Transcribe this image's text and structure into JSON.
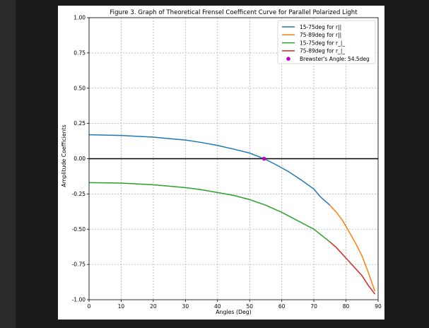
{
  "chart_data": {
    "type": "line",
    "title": "Figure 3. Graph of Theoretical Frensel Coefficent Curve for Parallel Polarized Light",
    "xlabel": "Angles (Deg)",
    "ylabel": "Amplitude Coefficients",
    "xlim": [
      0,
      90
    ],
    "ylim": [
      -1.0,
      1.0
    ],
    "xticks": [
      0,
      10,
      20,
      30,
      40,
      50,
      60,
      70,
      80,
      90
    ],
    "yticks": [
      "-1.00",
      "-0.75",
      "-0.50",
      "-0.25",
      "0.00",
      "0.25",
      "0.50",
      "0.75",
      "1.00"
    ],
    "grid": true,
    "legend_position": "top-right",
    "series": [
      {
        "name": "15-75deg for r||",
        "color": "#1f77b4",
        "x": [
          0,
          10,
          20,
          30,
          35,
          40,
          45,
          50,
          54.5,
          58,
          62,
          66,
          70,
          72,
          75
        ],
        "y": [
          0.17,
          0.165,
          0.153,
          0.132,
          0.115,
          0.094,
          0.068,
          0.04,
          0.0,
          -0.04,
          -0.09,
          -0.15,
          -0.215,
          -0.27,
          -0.33
        ]
      },
      {
        "name": "75-89deg for r||",
        "color": "#ff7f0e",
        "x": [
          75,
          77,
          79,
          81,
          83,
          85,
          87,
          89
        ],
        "y": [
          -0.33,
          -0.38,
          -0.44,
          -0.52,
          -0.6,
          -0.69,
          -0.81,
          -0.94
        ]
      },
      {
        "name": "15-75deg for r_|_",
        "color": "#2ca02c",
        "x": [
          0,
          10,
          20,
          30,
          35,
          40,
          45,
          50,
          55,
          60,
          65,
          70,
          75
        ],
        "y": [
          -0.17,
          -0.173,
          -0.185,
          -0.205,
          -0.22,
          -0.24,
          -0.26,
          -0.29,
          -0.33,
          -0.38,
          -0.44,
          -0.5,
          -0.59
        ]
      },
      {
        "name": "75-89deg for r_|_",
        "color": "#d62728",
        "x": [
          75,
          77,
          79,
          81,
          83,
          85,
          87,
          89
        ],
        "y": [
          -0.59,
          -0.63,
          -0.68,
          -0.73,
          -0.78,
          -0.83,
          -0.9,
          -0.96
        ]
      }
    ],
    "point": {
      "name": "Brewster's Angle: 54.5deg",
      "color": "#bf00bf",
      "x": 54.5,
      "y": 0.0
    },
    "hline": {
      "y": 0.0,
      "color": "#000000"
    }
  }
}
